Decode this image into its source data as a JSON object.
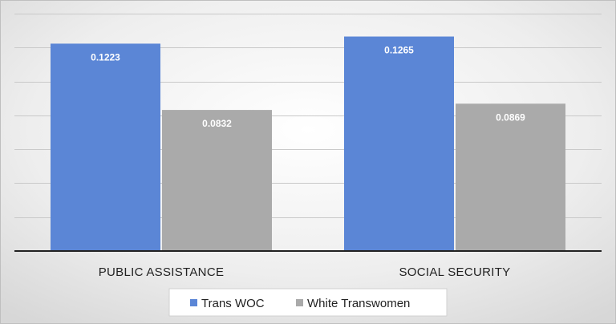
{
  "chart_data": {
    "type": "bar",
    "title": "",
    "xlabel": "",
    "ylabel": "",
    "categories": [
      "PUBLIC ASSISTANCE",
      "SOCIAL SECURITY"
    ],
    "series": [
      {
        "name": "Trans WOC",
        "values": [
          0.1223,
          0.1265
        ],
        "value_labels": [
          "0.1223",
          "0.1265"
        ],
        "color": "#5b86d6"
      },
      {
        "name": "White Transwomen",
        "values": [
          0.0832,
          0.0869
        ],
        "value_labels": [
          "0.0832",
          "0.0869"
        ],
        "color": "#aaaaaa"
      }
    ],
    "ylim": [
      0,
      0.14
    ],
    "grid_step": 0.02,
    "grid": true,
    "legend_position": "bottom",
    "background": "gradient-gray"
  }
}
